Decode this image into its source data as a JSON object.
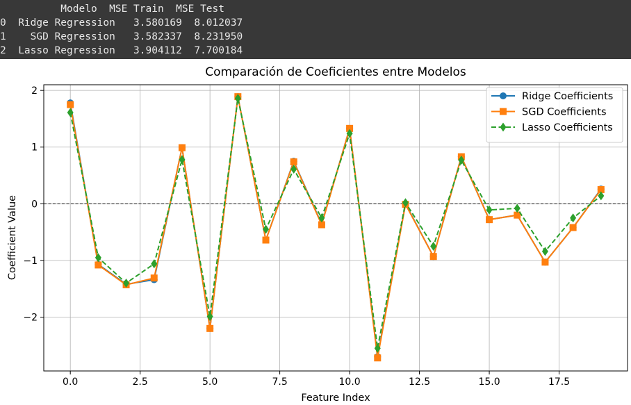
{
  "console": {
    "header": "          Modelo  MSE Train  MSE Test",
    "rows": [
      "0  Ridge Regression   3.580169  8.012037",
      "1    SGD Regression   3.582337  8.231950",
      "2  Lasso Regression   3.904112  7.700184"
    ]
  },
  "chart_data": {
    "type": "line",
    "title": "Comparación de Coeficientes entre Modelos",
    "xlabel": "Feature Index",
    "ylabel": "Coefficient Value",
    "xlim": [
      -0.95,
      19.95
    ],
    "ylim": [
      -2.95,
      2.1
    ],
    "xticks": [
      0.0,
      2.5,
      5.0,
      7.5,
      10.0,
      12.5,
      15.0,
      17.5
    ],
    "xtick_labels": [
      "0.0",
      "2.5",
      "5.0",
      "7.5",
      "10.0",
      "12.5",
      "15.0",
      "17.5"
    ],
    "yticks": [
      -2,
      -1,
      0,
      1,
      2
    ],
    "ytick_labels": [
      "−2",
      "−1",
      "0",
      "1",
      "2"
    ],
    "grid": true,
    "legend_position": "top-right",
    "reference_line": 0,
    "x": [
      0,
      1,
      2,
      3,
      4,
      5,
      6,
      7,
      8,
      9,
      10,
      11,
      12,
      13,
      14,
      15,
      16,
      17,
      18,
      19
    ],
    "series": [
      {
        "name": "Ridge Coefficients",
        "color": "#1f77b4",
        "marker": "circle",
        "linestyle": "solid",
        "values": [
          1.78,
          -1.07,
          -1.42,
          -1.34,
          0.99,
          -2.2,
          1.89,
          -0.64,
          0.75,
          -0.36,
          1.33,
          -2.7,
          0.0,
          -0.93,
          0.83,
          -0.28,
          -0.2,
          -1.03,
          -0.42,
          0.26
        ]
      },
      {
        "name": "SGD Coefficients",
        "color": "#ff7f0e",
        "marker": "square",
        "linestyle": "solid",
        "values": [
          1.75,
          -1.08,
          -1.43,
          -1.31,
          0.99,
          -2.2,
          1.89,
          -0.64,
          0.74,
          -0.37,
          1.33,
          -2.72,
          -0.01,
          -0.93,
          0.83,
          -0.28,
          -0.2,
          -1.03,
          -0.42,
          0.25
        ]
      },
      {
        "name": "Lasso Coefficients",
        "color": "#2ca02c",
        "marker": "diamond",
        "linestyle": "dashed",
        "values": [
          1.61,
          -0.95,
          -1.4,
          -1.06,
          0.78,
          -1.99,
          1.86,
          -0.45,
          0.61,
          -0.25,
          1.24,
          -2.55,
          0.02,
          -0.75,
          0.77,
          -0.11,
          -0.08,
          -0.84,
          -0.25,
          0.14
        ]
      }
    ]
  }
}
